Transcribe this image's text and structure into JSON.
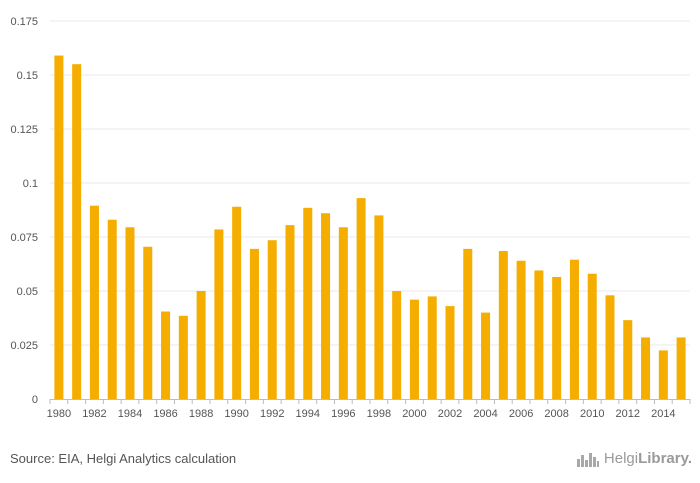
{
  "chart_data": {
    "type": "bar",
    "title": "",
    "xlabel": "",
    "ylabel": "",
    "ylim": [
      0,
      0.175
    ],
    "yticks": [
      0,
      0.025,
      0.05,
      0.075,
      0.1,
      0.125,
      0.15,
      0.175
    ],
    "ytick_labels": [
      "0",
      "0.025",
      "0.05",
      "0.075",
      "0.1",
      "0.125",
      "0.15",
      "0.175"
    ],
    "grid": true,
    "color": "#f5ad00",
    "categories": [
      "1980",
      "1981",
      "1982",
      "1983",
      "1984",
      "1985",
      "1986",
      "1987",
      "1988",
      "1989",
      "1990",
      "1991",
      "1992",
      "1993",
      "1994",
      "1995",
      "1996",
      "1997",
      "1998",
      "1999",
      "2000",
      "2001",
      "2002",
      "2003",
      "2004",
      "2005",
      "2006",
      "2007",
      "2008",
      "2009",
      "2010",
      "2011",
      "2012",
      "2013",
      "2014",
      "2015"
    ],
    "xtick_labels": [
      "1980",
      "1982",
      "1984",
      "1986",
      "1988",
      "1990",
      "1992",
      "1994",
      "1996",
      "1998",
      "2000",
      "2002",
      "2004",
      "2006",
      "2008",
      "2010",
      "2012",
      "2014"
    ],
    "values": [
      0.159,
      0.155,
      0.0895,
      0.083,
      0.0795,
      0.0705,
      0.0405,
      0.0385,
      0.05,
      0.0785,
      0.089,
      0.0695,
      0.0735,
      0.0805,
      0.0885,
      0.086,
      0.0795,
      0.093,
      0.085,
      0.05,
      0.046,
      0.0475,
      0.043,
      0.0695,
      0.04,
      0.0685,
      0.064,
      0.0595,
      0.0565,
      0.0645,
      0.058,
      0.048,
      0.0365,
      0.0285,
      0.0225,
      0.0285
    ]
  },
  "footer": {
    "source": "Source: EIA, Helgi Analytics calculation",
    "logo_light": "Helgi",
    "logo_bold": "Library."
  }
}
